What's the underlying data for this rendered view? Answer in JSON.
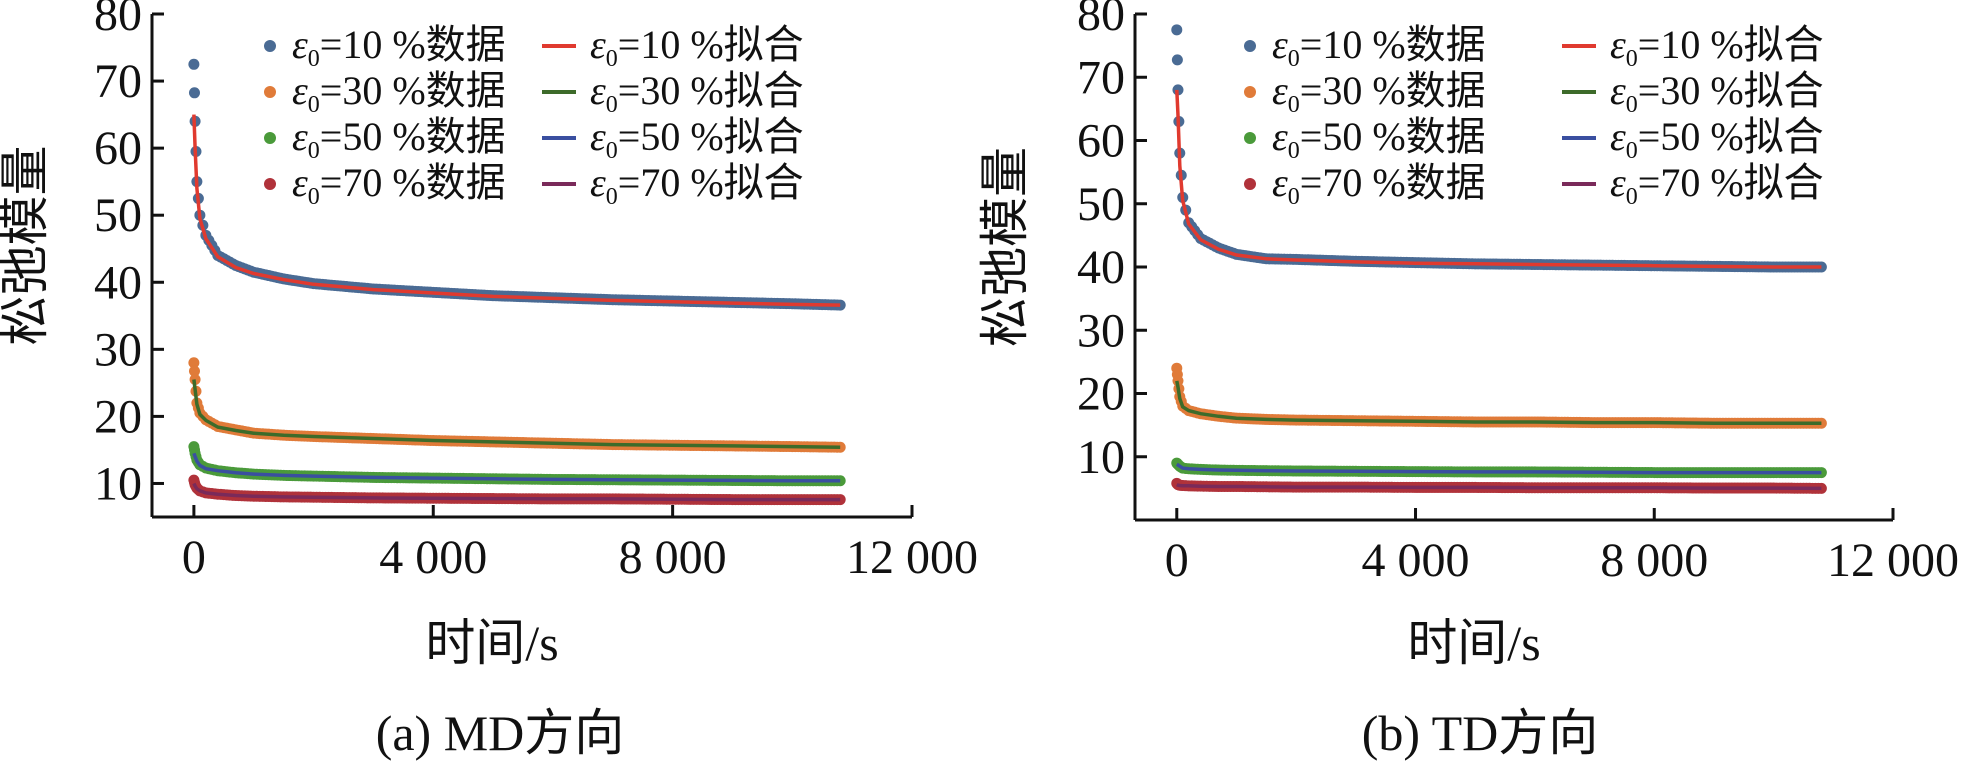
{
  "chart_data": [
    {
      "type": "scatter",
      "caption": "(a) MD方向",
      "xlabel": "时间/s",
      "ylabel": "松弛模量",
      "xlim": [
        -700,
        12000
      ],
      "ylim": [
        5,
        80
      ],
      "xticks": [
        0,
        4000,
        8000,
        12000
      ],
      "xtick_labels": [
        "0",
        "4 000",
        "8 000",
        "12 000"
      ],
      "yticks": [
        10,
        20,
        30,
        40,
        50,
        60,
        70,
        80
      ],
      "ytick_labels": [
        "10",
        "20",
        "30",
        "40",
        "50",
        "60",
        "70",
        "80"
      ],
      "legend_position": "top",
      "series": [
        {
          "name": "ε0=10 %数据",
          "kind": "data",
          "color": "#4a6b94",
          "x": [
            0,
            20,
            50,
            100,
            200,
            400,
            700,
            1000,
            1500,
            2000,
            3000,
            4000,
            5000,
            6000,
            7000,
            8000,
            9000,
            10000,
            10800
          ],
          "y": [
            72.5,
            64,
            55,
            50,
            47,
            44,
            42.5,
            41.5,
            40.5,
            39.8,
            39,
            38.5,
            38,
            37.7,
            37.4,
            37.2,
            37,
            36.8,
            36.6
          ]
        },
        {
          "name": "ε0=30 %数据",
          "kind": "data",
          "color": "#e07b39",
          "x": [
            0,
            20,
            50,
            100,
            200,
            400,
            700,
            1000,
            1500,
            2000,
            3000,
            4000,
            5000,
            6000,
            7000,
            8000,
            9000,
            10000,
            10800
          ],
          "y": [
            28,
            25.5,
            22,
            20.5,
            19.5,
            18.5,
            18,
            17.5,
            17.2,
            17,
            16.7,
            16.4,
            16.2,
            16,
            15.8,
            15.7,
            15.6,
            15.5,
            15.4
          ]
        },
        {
          "name": "ε0=50 %数据",
          "kind": "data",
          "color": "#4a9a3a",
          "x": [
            0,
            20,
            50,
            100,
            200,
            400,
            700,
            1000,
            1500,
            2000,
            3000,
            4000,
            5000,
            6000,
            7000,
            8000,
            9000,
            10000,
            10800
          ],
          "y": [
            15.5,
            14.5,
            13.5,
            12.8,
            12.3,
            11.9,
            11.6,
            11.4,
            11.2,
            11.1,
            10.9,
            10.8,
            10.7,
            10.6,
            10.55,
            10.5,
            10.45,
            10.4,
            10.4
          ]
        },
        {
          "name": "ε0=70 %数据",
          "kind": "data",
          "color": "#b0323a",
          "x": [
            0,
            20,
            50,
            100,
            200,
            400,
            700,
            1000,
            1500,
            2000,
            3000,
            4000,
            5000,
            6000,
            7000,
            8000,
            9000,
            10000,
            10800
          ],
          "y": [
            10.5,
            9.8,
            9.3,
            8.9,
            8.6,
            8.4,
            8.2,
            8.1,
            8,
            7.95,
            7.85,
            7.8,
            7.75,
            7.7,
            7.7,
            7.65,
            7.6,
            7.6,
            7.6
          ]
        },
        {
          "name": "ε0=10 %拟合",
          "kind": "fit",
          "color": "#e03a2f",
          "x": [
            0,
            20,
            50,
            100,
            200,
            400,
            700,
            1000,
            1500,
            2000,
            3000,
            4000,
            5000,
            6000,
            7000,
            8000,
            9000,
            10000,
            10800
          ],
          "y": [
            65,
            60,
            54,
            49.5,
            46.5,
            43.8,
            42.2,
            41.3,
            40.4,
            39.7,
            38.9,
            38.4,
            37.9,
            37.6,
            37.3,
            37.1,
            36.9,
            36.7,
            36.6
          ]
        },
        {
          "name": "ε0=30 %拟合",
          "kind": "fit",
          "color": "#3d6b2a",
          "x": [
            0,
            20,
            50,
            100,
            200,
            400,
            700,
            1000,
            1500,
            2000,
            3000,
            4000,
            5000,
            6000,
            7000,
            8000,
            9000,
            10000,
            10800
          ],
          "y": [
            25.5,
            24,
            21.8,
            20.3,
            19.4,
            18.4,
            17.9,
            17.5,
            17.2,
            17,
            16.7,
            16.4,
            16.2,
            16,
            15.8,
            15.7,
            15.6,
            15.5,
            15.4
          ]
        },
        {
          "name": "ε0=50 %拟合",
          "kind": "fit",
          "color": "#3a4fa0",
          "x": [
            0,
            20,
            50,
            100,
            200,
            400,
            700,
            1000,
            1500,
            2000,
            3000,
            4000,
            5000,
            6000,
            7000,
            8000,
            9000,
            10000,
            10800
          ],
          "y": [
            14.5,
            14,
            13.3,
            12.7,
            12.2,
            11.9,
            11.6,
            11.4,
            11.2,
            11.1,
            10.9,
            10.8,
            10.7,
            10.6,
            10.55,
            10.5,
            10.45,
            10.4,
            10.4
          ]
        },
        {
          "name": "ε0=70 %拟合",
          "kind": "fit",
          "color": "#7a2a5a",
          "x": [
            0,
            20,
            50,
            100,
            200,
            400,
            700,
            1000,
            1500,
            2000,
            3000,
            4000,
            5000,
            6000,
            7000,
            8000,
            9000,
            10000,
            10800
          ],
          "y": [
            10,
            9.6,
            9.2,
            8.9,
            8.6,
            8.4,
            8.2,
            8.1,
            8,
            7.95,
            7.85,
            7.8,
            7.75,
            7.7,
            7.7,
            7.65,
            7.6,
            7.6,
            7.6
          ]
        }
      ]
    },
    {
      "type": "scatter",
      "caption": "(b) TD方向",
      "xlabel": "时间/s",
      "ylabel": "松弛模量",
      "xlim": [
        -700,
        12000
      ],
      "ylim": [
        0,
        80
      ],
      "xticks": [
        0,
        4000,
        8000,
        12000
      ],
      "xtick_labels": [
        "0",
        "4 000",
        "8 000",
        "12 000"
      ],
      "yticks": [
        10,
        20,
        30,
        40,
        50,
        60,
        70,
        80
      ],
      "ytick_labels": [
        "10",
        "20",
        "30",
        "40",
        "50",
        "60",
        "70",
        "80"
      ],
      "legend_position": "top",
      "series": [
        {
          "name": "ε0=10 %数据",
          "kind": "data",
          "color": "#4a6b94",
          "x": [
            0,
            20,
            50,
            100,
            200,
            400,
            700,
            1000,
            1500,
            2000,
            3000,
            4000,
            5000,
            6000,
            7000,
            8000,
            9000,
            10000,
            10800
          ],
          "y": [
            77.5,
            68,
            58,
            51,
            47,
            44.5,
            43,
            42,
            41.3,
            41.2,
            40.9,
            40.7,
            40.5,
            40.4,
            40.3,
            40.2,
            40.1,
            40,
            40
          ]
        },
        {
          "name": "ε0=30 %数据",
          "kind": "data",
          "color": "#e07b39",
          "x": [
            0,
            20,
            50,
            100,
            200,
            400,
            700,
            1000,
            1500,
            2000,
            3000,
            4000,
            5000,
            6000,
            7000,
            8000,
            9000,
            10000,
            10800
          ],
          "y": [
            24,
            22,
            19.5,
            18,
            17.3,
            16.8,
            16.4,
            16.1,
            15.9,
            15.8,
            15.7,
            15.6,
            15.5,
            15.5,
            15.4,
            15.4,
            15.3,
            15.3,
            15.3
          ]
        },
        {
          "name": "ε0=50 %数据",
          "kind": "data",
          "color": "#4a9a3a",
          "x": [
            0,
            20,
            50,
            100,
            200,
            400,
            700,
            1000,
            1500,
            2000,
            3000,
            4000,
            5000,
            6000,
            7000,
            8000,
            9000,
            10000,
            10800
          ],
          "y": [
            9,
            8.8,
            8.5,
            8.2,
            8.1,
            8,
            7.9,
            7.85,
            7.8,
            7.75,
            7.7,
            7.65,
            7.6,
            7.6,
            7.55,
            7.5,
            7.5,
            7.5,
            7.5
          ]
        },
        {
          "name": "ε0=70 %数据",
          "kind": "data",
          "color": "#b0323a",
          "x": [
            0,
            20,
            50,
            100,
            200,
            400,
            700,
            1000,
            1500,
            2000,
            3000,
            4000,
            5000,
            6000,
            7000,
            8000,
            9000,
            10000,
            10800
          ],
          "y": [
            5.8,
            5.6,
            5.5,
            5.45,
            5.4,
            5.35,
            5.3,
            5.3,
            5.25,
            5.2,
            5.2,
            5.15,
            5.15,
            5.1,
            5.1,
            5.1,
            5.05,
            5.05,
            5
          ]
        },
        {
          "name": "ε0=10 %拟合",
          "kind": "fit",
          "color": "#e03a2f",
          "x": [
            0,
            20,
            50,
            100,
            200,
            400,
            700,
            1000,
            1500,
            2000,
            3000,
            4000,
            5000,
            6000,
            7000,
            8000,
            9000,
            10000,
            10800
          ],
          "y": [
            68,
            64,
            56,
            50.5,
            46.8,
            44.3,
            42.8,
            41.9,
            41.3,
            41.1,
            40.8,
            40.6,
            40.5,
            40.4,
            40.3,
            40.2,
            40.1,
            40,
            40
          ]
        },
        {
          "name": "ε0=30 %拟合",
          "kind": "fit",
          "color": "#3d6b2a",
          "x": [
            0,
            20,
            50,
            100,
            200,
            400,
            700,
            1000,
            1500,
            2000,
            3000,
            4000,
            5000,
            6000,
            7000,
            8000,
            9000,
            10000,
            10800
          ],
          "y": [
            22,
            21,
            19.2,
            17.9,
            17.3,
            16.8,
            16.4,
            16.1,
            15.9,
            15.8,
            15.7,
            15.6,
            15.5,
            15.5,
            15.4,
            15.4,
            15.3,
            15.3,
            15.3
          ]
        },
        {
          "name": "ε0=50 %拟合",
          "kind": "fit",
          "color": "#3a4fa0",
          "x": [
            0,
            20,
            50,
            100,
            200,
            400,
            700,
            1000,
            1500,
            2000,
            3000,
            4000,
            5000,
            6000,
            7000,
            8000,
            9000,
            10000,
            10800
          ],
          "y": [
            8.8,
            8.7,
            8.5,
            8.2,
            8.1,
            8,
            7.9,
            7.85,
            7.8,
            7.75,
            7.7,
            7.65,
            7.6,
            7.6,
            7.55,
            7.5,
            7.5,
            7.5,
            7.5
          ]
        },
        {
          "name": "ε0=70 %拟合",
          "kind": "fit",
          "color": "#7a2a5a",
          "x": [
            0,
            20,
            50,
            100,
            200,
            400,
            700,
            1000,
            1500,
            2000,
            3000,
            4000,
            5000,
            6000,
            7000,
            8000,
            9000,
            10000,
            10800
          ],
          "y": [
            5.6,
            5.5,
            5.45,
            5.4,
            5.4,
            5.35,
            5.3,
            5.3,
            5.25,
            5.2,
            5.2,
            5.15,
            5.15,
            5.1,
            5.1,
            5.1,
            5.05,
            5.05,
            5
          ]
        }
      ]
    }
  ]
}
